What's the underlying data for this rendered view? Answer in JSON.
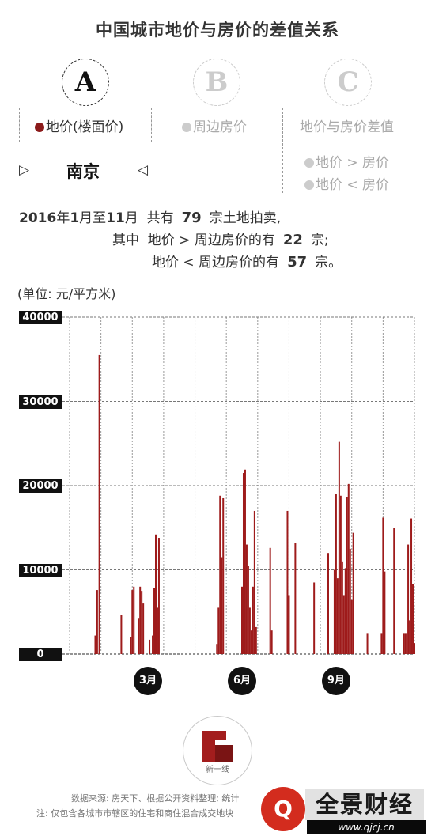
{
  "title": "中国城市地价与房价的差值关系",
  "tabs": [
    {
      "letter": "A",
      "label": "地价(楼面价)"
    },
    {
      "letter": "B",
      "label": "周边房价"
    },
    {
      "letter": "C",
      "label": "地价与房价差值"
    }
  ],
  "city": "南京",
  "legend": [
    "地价 > 房价",
    "地价 < 房价"
  ],
  "summary": {
    "year": "2016",
    "year_suffix": "年",
    "m1": "1",
    "mid": "月至",
    "m2": "11",
    "tail": "月  共有",
    "total": "79",
    "total_unit": "宗土地拍卖,",
    "line2_prefix": "其中  地价 > 周边房价的有",
    "gt_count": "22",
    "gt_unit": "宗;",
    "line3_prefix": "地价 < 周边房价的有",
    "lt_count": "57",
    "lt_unit": "宗。"
  },
  "unit_label": "(单位: 元/平方米)",
  "colors": {
    "bar": "#9e1b1b",
    "accent_dot": "#8b1a1a",
    "inactive": "#cccccc",
    "watermark_red": "#d32c1e"
  },
  "chart_data": {
    "type": "bar",
    "ylim": [
      0,
      40000
    ],
    "yticks": [
      0,
      10000,
      20000,
      30000,
      40000
    ],
    "ytick_labels": [
      "0",
      "10000",
      "20000",
      "30000",
      "40000"
    ],
    "month_labels": [
      {
        "label": "3月",
        "month": 3
      },
      {
        "label": "6月",
        "month": 6
      },
      {
        "label": "9月",
        "month": 9
      }
    ],
    "grid": true,
    "x_months": [
      1,
      12
    ],
    "bars": [
      {
        "x": 1.82,
        "y": 2200
      },
      {
        "x": 1.88,
        "y": 7600
      },
      {
        "x": 1.95,
        "y": 35500
      },
      {
        "x": 2.65,
        "y": 4600
      },
      {
        "x": 2.95,
        "y": 2000
      },
      {
        "x": 3.0,
        "y": 7600
      },
      {
        "x": 3.05,
        "y": 8000
      },
      {
        "x": 3.2,
        "y": 4200
      },
      {
        "x": 3.25,
        "y": 8000
      },
      {
        "x": 3.3,
        "y": 7500
      },
      {
        "x": 3.35,
        "y": 6000
      },
      {
        "x": 3.55,
        "y": 1700
      },
      {
        "x": 3.65,
        "y": 2200
      },
      {
        "x": 3.7,
        "y": 7800
      },
      {
        "x": 3.75,
        "y": 14200
      },
      {
        "x": 3.8,
        "y": 5500
      },
      {
        "x": 3.85,
        "y": 13800
      },
      {
        "x": 5.7,
        "y": 1200
      },
      {
        "x": 5.75,
        "y": 5500
      },
      {
        "x": 5.8,
        "y": 18800
      },
      {
        "x": 5.85,
        "y": 11500
      },
      {
        "x": 5.9,
        "y": 18500
      },
      {
        "x": 6.5,
        "y": 8000
      },
      {
        "x": 6.55,
        "y": 21500
      },
      {
        "x": 6.6,
        "y": 21900
      },
      {
        "x": 6.65,
        "y": 13000
      },
      {
        "x": 6.7,
        "y": 10500
      },
      {
        "x": 6.75,
        "y": 5500
      },
      {
        "x": 6.8,
        "y": 2800
      },
      {
        "x": 6.85,
        "y": 8000
      },
      {
        "x": 6.9,
        "y": 17000
      },
      {
        "x": 6.95,
        "y": 3200
      },
      {
        "x": 7.4,
        "y": 12600
      },
      {
        "x": 7.45,
        "y": 2800
      },
      {
        "x": 7.95,
        "y": 17000
      },
      {
        "x": 8.0,
        "y": 7000
      },
      {
        "x": 8.2,
        "y": 13200
      },
      {
        "x": 8.8,
        "y": 8500
      },
      {
        "x": 9.25,
        "y": 12000
      },
      {
        "x": 9.45,
        "y": 10000
      },
      {
        "x": 9.5,
        "y": 19000
      },
      {
        "x": 9.55,
        "y": 9000
      },
      {
        "x": 9.6,
        "y": 25200
      },
      {
        "x": 9.65,
        "y": 18800
      },
      {
        "x": 9.7,
        "y": 11000
      },
      {
        "x": 9.75,
        "y": 7000
      },
      {
        "x": 9.8,
        "y": 10200
      },
      {
        "x": 9.85,
        "y": 18600
      },
      {
        "x": 9.9,
        "y": 20200
      },
      {
        "x": 9.95,
        "y": 12500
      },
      {
        "x": 10.0,
        "y": 6500
      },
      {
        "x": 10.05,
        "y": 14400
      },
      {
        "x": 10.5,
        "y": 2500
      },
      {
        "x": 10.95,
        "y": 2500
      },
      {
        "x": 11.0,
        "y": 16200
      },
      {
        "x": 11.05,
        "y": 9800
      },
      {
        "x": 11.35,
        "y": 15000
      },
      {
        "x": 11.65,
        "y": 2500
      },
      {
        "x": 11.7,
        "y": 2500
      },
      {
        "x": 11.75,
        "y": 2500
      },
      {
        "x": 11.8,
        "y": 13000
      },
      {
        "x": 11.85,
        "y": 4000
      },
      {
        "x": 11.9,
        "y": 16100
      },
      {
        "x": 11.95,
        "y": 8300
      },
      {
        "x": 12.0,
        "y": 1300
      }
    ]
  },
  "footer": {
    "logo_text": "新一线",
    "source": "数据来源: 房天下、根据公开资料整理; 统计",
    "note": "注: 仅包含各城市市辖区的住宅和商住混合成交地块",
    "watermark_name": "全景财经",
    "watermark_url": "www.qjcj.cn"
  }
}
